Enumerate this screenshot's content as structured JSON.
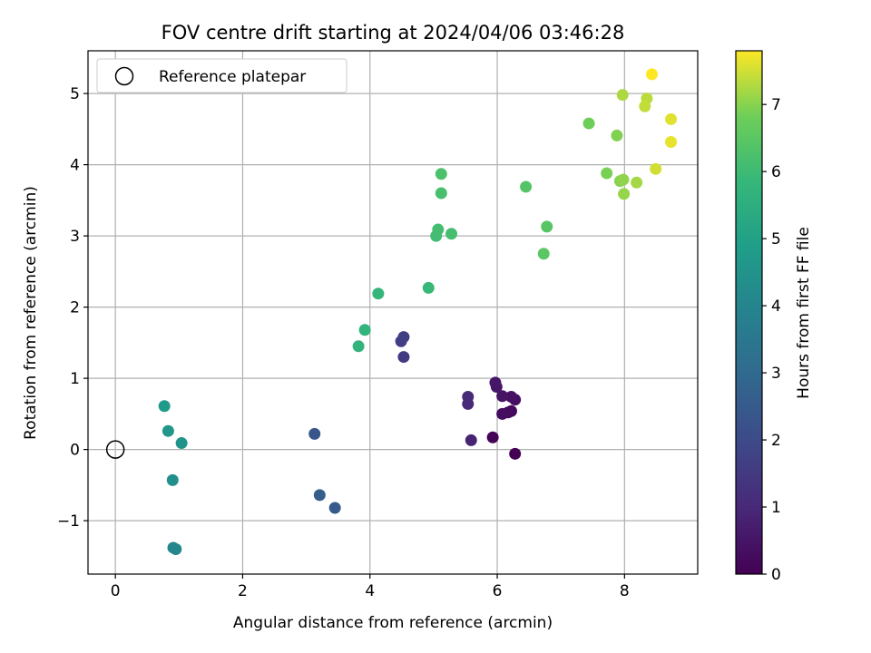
{
  "chart_data": {
    "type": "scatter",
    "title": "FOV centre drift starting at 2024/04/06 03:46:28",
    "xlabel": "Angular distance from reference (arcmin)",
    "ylabel": "Rotation from reference (arcmin)",
    "xlim": [
      -0.43,
      9.15
    ],
    "ylim": [
      -1.75,
      5.6
    ],
    "xticks": [
      0,
      2,
      4,
      6,
      8
    ],
    "yticks": [
      -1,
      0,
      1,
      2,
      3,
      4,
      5
    ],
    "xtick_labels": [
      "0",
      "2",
      "4",
      "6",
      "8"
    ],
    "ytick_labels": [
      "−1",
      "0",
      "1",
      "2",
      "3",
      "4",
      "5"
    ],
    "grid": true,
    "legend": {
      "placement": "top-left",
      "label": "Reference platepar"
    },
    "reference_point": {
      "x": 0,
      "y": 0
    },
    "colorbar": {
      "label": "Hours from first FF file",
      "range": [
        0,
        7.8
      ],
      "ticks": [
        0,
        1,
        2,
        3,
        4,
        5,
        6,
        7
      ],
      "tick_labels": [
        "0",
        "1",
        "2",
        "3",
        "4",
        "5",
        "6",
        "7"
      ],
      "colormap": "viridis"
    },
    "points": [
      {
        "x": 6.28,
        "y": -0.06,
        "t": 0.0
      },
      {
        "x": 5.93,
        "y": 0.17,
        "t": 0.1
      },
      {
        "x": 6.22,
        "y": 0.54,
        "t": 0.2
      },
      {
        "x": 6.17,
        "y": 0.52,
        "t": 0.25
      },
      {
        "x": 6.08,
        "y": 0.5,
        "t": 0.3
      },
      {
        "x": 6.28,
        "y": 0.7,
        "t": 0.35
      },
      {
        "x": 6.22,
        "y": 0.74,
        "t": 0.4
      },
      {
        "x": 6.08,
        "y": 0.75,
        "t": 0.45
      },
      {
        "x": 5.99,
        "y": 0.88,
        "t": 0.5
      },
      {
        "x": 5.97,
        "y": 0.94,
        "t": 0.55
      },
      {
        "x": 5.59,
        "y": 0.13,
        "t": 0.85
      },
      {
        "x": 5.54,
        "y": 0.64,
        "t": 1.0
      },
      {
        "x": 5.54,
        "y": 0.74,
        "t": 1.05
      },
      {
        "x": 4.53,
        "y": 1.3,
        "t": 1.55
      },
      {
        "x": 4.49,
        "y": 1.52,
        "t": 1.6
      },
      {
        "x": 4.53,
        "y": 1.58,
        "t": 1.65
      },
      {
        "x": 3.13,
        "y": 0.22,
        "t": 2.35
      },
      {
        "x": 3.45,
        "y": -0.82,
        "t": 2.5
      },
      {
        "x": 3.21,
        "y": -0.64,
        "t": 2.6
      },
      {
        "x": 0.95,
        "y": -1.4,
        "t": 4.0
      },
      {
        "x": 0.91,
        "y": -1.38,
        "t": 4.05
      },
      {
        "x": 0.9,
        "y": -0.43,
        "t": 4.35
      },
      {
        "x": 1.04,
        "y": 0.09,
        "t": 4.5
      },
      {
        "x": 0.83,
        "y": 0.26,
        "t": 4.6
      },
      {
        "x": 0.77,
        "y": 0.61,
        "t": 4.75
      },
      {
        "x": 3.82,
        "y": 1.45,
        "t": 5.7
      },
      {
        "x": 3.92,
        "y": 1.68,
        "t": 5.75
      },
      {
        "x": 4.13,
        "y": 2.19,
        "t": 5.8
      },
      {
        "x": 4.92,
        "y": 2.27,
        "t": 5.9
      },
      {
        "x": 5.04,
        "y": 3.0,
        "t": 6.05
      },
      {
        "x": 5.07,
        "y": 3.09,
        "t": 6.1
      },
      {
        "x": 5.28,
        "y": 3.03,
        "t": 6.15
      },
      {
        "x": 5.12,
        "y": 3.6,
        "t": 6.2
      },
      {
        "x": 5.12,
        "y": 3.87,
        "t": 6.25
      },
      {
        "x": 6.45,
        "y": 3.69,
        "t": 6.4
      },
      {
        "x": 6.78,
        "y": 3.13,
        "t": 6.45
      },
      {
        "x": 6.73,
        "y": 2.75,
        "t": 6.5
      },
      {
        "x": 7.44,
        "y": 4.58,
        "t": 6.8
      },
      {
        "x": 7.72,
        "y": 3.88,
        "t": 6.9
      },
      {
        "x": 7.88,
        "y": 4.41,
        "t": 6.95
      },
      {
        "x": 7.93,
        "y": 3.77,
        "t": 7.0
      },
      {
        "x": 7.98,
        "y": 3.79,
        "t": 7.05
      },
      {
        "x": 7.99,
        "y": 3.59,
        "t": 7.1
      },
      {
        "x": 8.19,
        "y": 3.75,
        "t": 7.2
      },
      {
        "x": 7.97,
        "y": 4.98,
        "t": 7.25
      },
      {
        "x": 8.35,
        "y": 4.93,
        "t": 7.35
      },
      {
        "x": 8.32,
        "y": 4.82,
        "t": 7.4
      },
      {
        "x": 8.49,
        "y": 3.94,
        "t": 7.5
      },
      {
        "x": 8.73,
        "y": 4.64,
        "t": 7.6
      },
      {
        "x": 8.73,
        "y": 4.32,
        "t": 7.65
      },
      {
        "x": 8.43,
        "y": 5.27,
        "t": 7.8
      }
    ]
  }
}
